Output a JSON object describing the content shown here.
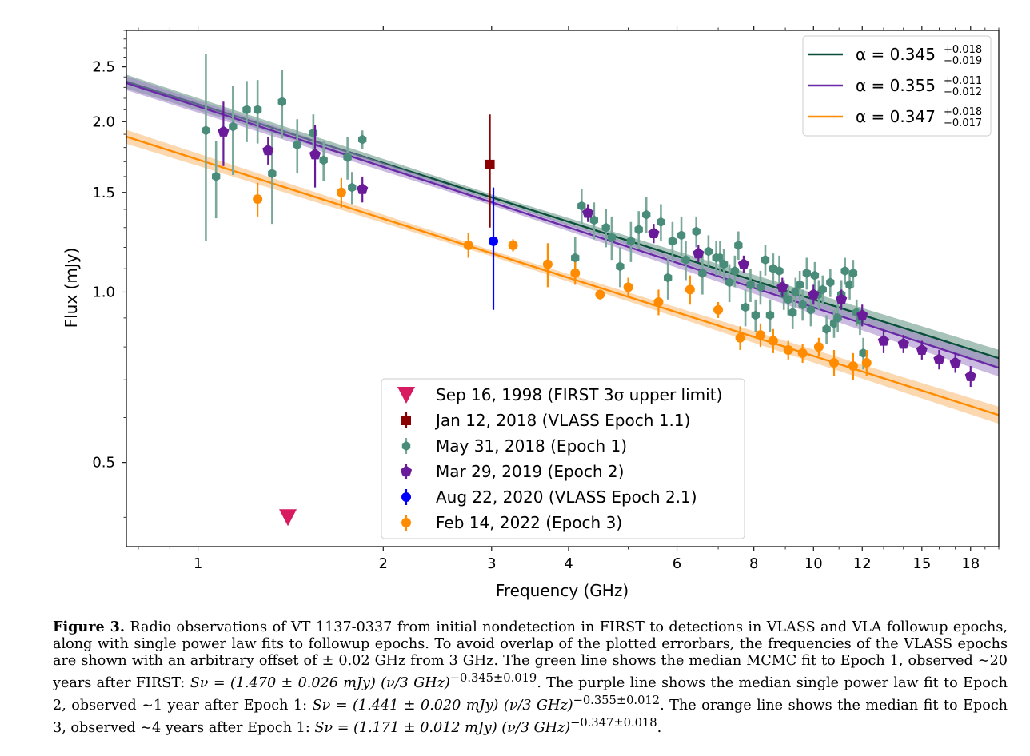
{
  "chart_data": {
    "type": "scatter",
    "xlabel": "Frequency (GHz)",
    "ylabel": "Flux (mJy)",
    "xscale": "log",
    "yscale": "log",
    "xlim": [
      0.765,
      20.0
    ],
    "ylim": [
      0.355,
      2.9
    ],
    "xticks": [
      1,
      2,
      3,
      4,
      6,
      8,
      10,
      12,
      15,
      18
    ],
    "yticks": [
      0.5,
      1.0,
      1.5,
      2.0,
      2.5
    ],
    "fits": [
      {
        "label": "α = 0.345",
        "sup": "+0.018",
        "sub": "−0.019",
        "color": "#0b4e3c",
        "band": "#5e8f7e",
        "amplitude": 1.47,
        "alpha": 0.345
      },
      {
        "label": "α = 0.355",
        "sup": "+0.011",
        "sub": "−0.012",
        "color": "#6a2aa8",
        "band": "#a183c6",
        "amplitude": 1.441,
        "alpha": 0.355
      },
      {
        "label": "α = 0.347",
        "sup": "+0.018",
        "sub": "−0.017",
        "color": "#ff8c00",
        "band": "#f7b870",
        "amplitude": 1.171,
        "alpha": 0.347
      }
    ],
    "series": [
      {
        "name": "Sep 16, 1998 (FIRST 3σ upper limit)",
        "marker": "triangle-down",
        "color": "#d81b60",
        "points": [
          {
            "x": 1.4,
            "y": 0.4
          }
        ]
      },
      {
        "name": "Jan 12, 2018 (VLASS Epoch 1.1)",
        "marker": "square",
        "color": "#8b0000",
        "points": [
          {
            "x": 2.98,
            "y": 1.68,
            "err": 0.38
          }
        ]
      },
      {
        "name": "May 31, 2018 (Epoch 1)",
        "marker": "hexagon",
        "color": "#4a8c7a",
        "points": [
          {
            "x": 1.03,
            "y": 1.93,
            "err": 0.7
          },
          {
            "x": 1.07,
            "y": 1.6,
            "err": 0.25
          },
          {
            "x": 1.14,
            "y": 1.96,
            "err": 0.35
          },
          {
            "x": 1.2,
            "y": 2.1,
            "err": 0.26
          },
          {
            "x": 1.25,
            "y": 2.1,
            "err": 0.27
          },
          {
            "x": 1.32,
            "y": 1.62,
            "err": 0.3
          },
          {
            "x": 1.37,
            "y": 2.17,
            "err": 0.3
          },
          {
            "x": 1.45,
            "y": 1.82,
            "err": 0.2
          },
          {
            "x": 1.54,
            "y": 1.91,
            "err": 0.15
          },
          {
            "x": 1.6,
            "y": 1.71,
            "err": 0.14
          },
          {
            "x": 1.75,
            "y": 1.73,
            "err": 0.15
          },
          {
            "x": 1.78,
            "y": 1.53,
            "err": 0.1
          },
          {
            "x": 1.85,
            "y": 1.86,
            "err": 0.07
          },
          {
            "x": 4.1,
            "y": 1.15,
            "err": 0.1
          },
          {
            "x": 4.2,
            "y": 1.42,
            "err": 0.1
          },
          {
            "x": 4.4,
            "y": 1.34,
            "err": 0.1
          },
          {
            "x": 4.6,
            "y": 1.3,
            "err": 0.1
          },
          {
            "x": 4.7,
            "y": 1.25,
            "err": 0.11
          },
          {
            "x": 4.85,
            "y": 1.11,
            "err": 0.09
          },
          {
            "x": 5.05,
            "y": 1.23,
            "err": 0.1
          },
          {
            "x": 5.2,
            "y": 1.29,
            "err": 0.1
          },
          {
            "x": 5.35,
            "y": 1.37,
            "err": 0.1
          },
          {
            "x": 5.65,
            "y": 1.33,
            "err": 0.1
          },
          {
            "x": 5.8,
            "y": 1.06,
            "err": 0.09
          },
          {
            "x": 5.9,
            "y": 1.23,
            "err": 0.1
          },
          {
            "x": 6.1,
            "y": 1.26,
            "err": 0.1
          },
          {
            "x": 6.2,
            "y": 1.14,
            "err": 0.09
          },
          {
            "x": 6.45,
            "y": 1.28,
            "err": 0.08
          },
          {
            "x": 6.6,
            "y": 1.08,
            "err": 0.09
          },
          {
            "x": 6.75,
            "y": 1.18,
            "err": 0.08
          },
          {
            "x": 6.95,
            "y": 1.15,
            "err": 0.08
          },
          {
            "x": 7.05,
            "y": 1.15,
            "err": 0.08
          },
          {
            "x": 7.15,
            "y": 1.12,
            "err": 0.07
          },
          {
            "x": 7.3,
            "y": 1.04,
            "err": 0.08
          },
          {
            "x": 7.45,
            "y": 1.09,
            "err": 0.07
          },
          {
            "x": 7.55,
            "y": 1.21,
            "err": 0.07
          },
          {
            "x": 7.75,
            "y": 0.94,
            "err": 0.07
          },
          {
            "x": 7.9,
            "y": 1.03,
            "err": 0.07
          },
          {
            "x": 8.05,
            "y": 0.91,
            "err": 0.06
          },
          {
            "x": 8.2,
            "y": 1.02,
            "err": 0.07
          },
          {
            "x": 8.35,
            "y": 1.14,
            "err": 0.07
          },
          {
            "x": 8.5,
            "y": 0.91,
            "err": 0.06
          },
          {
            "x": 8.6,
            "y": 1.1,
            "err": 0.07
          },
          {
            "x": 8.8,
            "y": 1.09,
            "err": 0.07
          },
          {
            "x": 8.95,
            "y": 0.99,
            "err": 0.06
          },
          {
            "x": 9.1,
            "y": 0.97,
            "err": 0.06
          },
          {
            "x": 9.25,
            "y": 0.92,
            "err": 0.06
          },
          {
            "x": 9.35,
            "y": 1.0,
            "err": 0.06
          },
          {
            "x": 9.5,
            "y": 1.03,
            "err": 0.06
          },
          {
            "x": 9.6,
            "y": 0.95,
            "err": 0.06
          },
          {
            "x": 9.75,
            "y": 1.08,
            "err": 0.07
          },
          {
            "x": 9.9,
            "y": 0.93,
            "err": 0.06
          },
          {
            "x": 10.05,
            "y": 1.07,
            "err": 0.06
          },
          {
            "x": 10.2,
            "y": 0.99,
            "err": 0.06
          },
          {
            "x": 10.35,
            "y": 1.01,
            "err": 0.06
          },
          {
            "x": 10.5,
            "y": 0.86,
            "err": 0.05
          },
          {
            "x": 10.65,
            "y": 1.04,
            "err": 0.06
          },
          {
            "x": 10.8,
            "y": 0.88,
            "err": 0.05
          },
          {
            "x": 10.95,
            "y": 0.9,
            "err": 0.05
          },
          {
            "x": 11.1,
            "y": 0.99,
            "err": 0.06
          },
          {
            "x": 11.25,
            "y": 1.09,
            "err": 0.06
          },
          {
            "x": 11.45,
            "y": 1.03,
            "err": 0.06
          },
          {
            "x": 11.6,
            "y": 1.08,
            "err": 0.06
          },
          {
            "x": 11.75,
            "y": 0.92,
            "err": 0.05
          },
          {
            "x": 11.9,
            "y": 0.89,
            "err": 0.05
          },
          {
            "x": 12.05,
            "y": 0.78,
            "err": 0.05
          }
        ]
      },
      {
        "name": "Mar 29, 2019 (Epoch 2)",
        "marker": "pentagon",
        "color": "#6a1b9a",
        "points": [
          {
            "x": 1.1,
            "y": 1.92,
            "err": 0.25
          },
          {
            "x": 1.3,
            "y": 1.78,
            "err": 0.1
          },
          {
            "x": 1.55,
            "y": 1.75,
            "err": 0.22
          },
          {
            "x": 1.85,
            "y": 1.52,
            "err": 0.08
          },
          {
            "x": 4.3,
            "y": 1.38,
            "err": 0.05
          },
          {
            "x": 5.5,
            "y": 1.27,
            "err": 0.05
          },
          {
            "x": 6.5,
            "y": 1.17,
            "err": 0.04
          },
          {
            "x": 7.7,
            "y": 1.12,
            "err": 0.04
          },
          {
            "x": 8.9,
            "y": 1.02,
            "err": 0.04
          },
          {
            "x": 10.0,
            "y": 0.99,
            "err": 0.04
          },
          {
            "x": 11.1,
            "y": 0.97,
            "err": 0.04
          },
          {
            "x": 12.0,
            "y": 0.91,
            "err": 0.04
          },
          {
            "x": 13.0,
            "y": 0.82,
            "err": 0.04
          },
          {
            "x": 14.0,
            "y": 0.81,
            "err": 0.03
          },
          {
            "x": 15.0,
            "y": 0.79,
            "err": 0.03
          },
          {
            "x": 16.0,
            "y": 0.76,
            "err": 0.03
          },
          {
            "x": 17.0,
            "y": 0.75,
            "err": 0.03
          },
          {
            "x": 18.0,
            "y": 0.71,
            "err": 0.03
          }
        ]
      },
      {
        "name": "Aug 22, 2020 (VLASS Epoch 2.1)",
        "marker": "circle",
        "color": "#0000ff",
        "points": [
          {
            "x": 3.02,
            "y": 1.23,
            "err": 0.3
          }
        ]
      },
      {
        "name": "Feb 14, 2022 (Epoch 3)",
        "marker": "circle",
        "color": "#ff8c00",
        "points": [
          {
            "x": 1.25,
            "y": 1.46,
            "err": 0.1
          },
          {
            "x": 1.71,
            "y": 1.5,
            "err": 0.09
          },
          {
            "x": 2.75,
            "y": 1.21,
            "err": 0.06
          },
          {
            "x": 3.25,
            "y": 1.21,
            "err": 0.03
          },
          {
            "x": 3.7,
            "y": 1.12,
            "err": 0.1
          },
          {
            "x": 4.1,
            "y": 1.08,
            "err": 0.05
          },
          {
            "x": 4.5,
            "y": 0.99,
            "err": 0.02
          },
          {
            "x": 5.0,
            "y": 1.02,
            "err": 0.04
          },
          {
            "x": 5.6,
            "y": 0.96,
            "err": 0.05
          },
          {
            "x": 6.3,
            "y": 1.01,
            "err": 0.06
          },
          {
            "x": 7.0,
            "y": 0.93,
            "err": 0.03
          },
          {
            "x": 7.6,
            "y": 0.83,
            "err": 0.04
          },
          {
            "x": 8.2,
            "y": 0.84,
            "err": 0.04
          },
          {
            "x": 8.6,
            "y": 0.82,
            "err": 0.04
          },
          {
            "x": 9.1,
            "y": 0.79,
            "err": 0.03
          },
          {
            "x": 9.6,
            "y": 0.78,
            "err": 0.03
          },
          {
            "x": 10.2,
            "y": 0.8,
            "err": 0.03
          },
          {
            "x": 10.8,
            "y": 0.75,
            "err": 0.04
          },
          {
            "x": 11.6,
            "y": 0.74,
            "err": 0.04
          },
          {
            "x": 12.2,
            "y": 0.75,
            "err": 0.04
          }
        ]
      }
    ]
  },
  "caption": {
    "label": "Figure 3.",
    "text1": "Radio observations of VT 1137-0337 from initial nondetection in FIRST to detections in VLASS and VLA followup epochs, along with single power law fits to followup epochs. To avoid overlap of the plotted errorbars, the frequencies of the VLASS epochs are shown with an arbitrary offset of ± 0.02 GHz from 3 GHz. The green line shows the median MCMC fit to Epoch 1, observed ∼20 years after FIRST: ",
    "eq1": "Sν = (1.470 ± 0.026 mJy) (ν/3 GHz)",
    "exp1": "−0.345±0.019",
    "text2": ". The purple line shows the median single power law fit to Epoch 2, observed ∼1 year after Epoch 1: ",
    "eq2": "Sν = (1.441 ± 0.020 mJy) (ν/3 GHz)",
    "exp2": "−0.355±0.012",
    "text3": ". The orange line shows the median fit to Epoch 3, observed ∼4 years after Epoch 1: ",
    "eq3": "Sν = (1.171 ± 0.012 mJy) (ν/3 GHz)",
    "exp3": "−0.347±0.018",
    "text4": "."
  }
}
